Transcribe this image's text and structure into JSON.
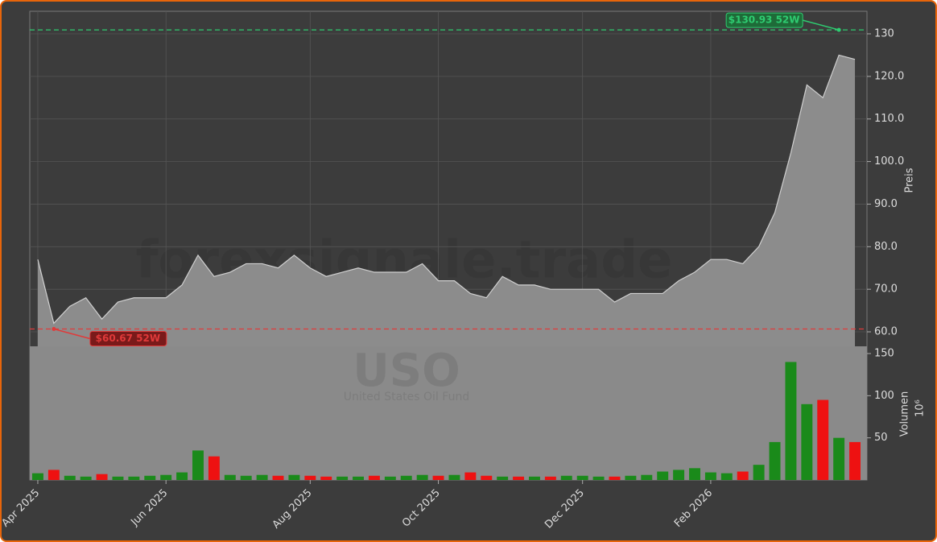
{
  "chart_data": {
    "type": "area",
    "watermark": "forexsignale.trade",
    "title": "USO",
    "subtitle": "United States Oil Fund",
    "ylabel": "Preis",
    "color": "#8c8c8c",
    "line_color": "#d0d0d0",
    "grid": true,
    "categories": [
      "Apr 2025",
      null,
      null,
      null,
      null,
      null,
      null,
      null,
      "Jun 2025",
      null,
      null,
      null,
      null,
      null,
      null,
      null,
      null,
      "Aug 2025",
      null,
      null,
      null,
      null,
      null,
      null,
      null,
      "Oct 2025",
      null,
      null,
      null,
      null,
      null,
      null,
      null,
      null,
      "Dec 2025",
      null,
      null,
      null,
      null,
      null,
      null,
      null,
      "Feb 2026",
      null,
      null,
      null,
      null,
      null,
      null,
      null,
      null,
      null
    ],
    "values": [
      77,
      62,
      66,
      68,
      63,
      67,
      68,
      68,
      68,
      71,
      78,
      73,
      74,
      76,
      76,
      75,
      78,
      75,
      73,
      74,
      75,
      74,
      74,
      74,
      76,
      72,
      72,
      69,
      68,
      73,
      71,
      71,
      70,
      70,
      70,
      70,
      67,
      69,
      69,
      69,
      72,
      74,
      77,
      77,
      76,
      80,
      88,
      102,
      118,
      115,
      125,
      124
    ],
    "ylim": [
      56.6,
      135.3
    ],
    "yticks": [
      {
        "value": 60,
        "label": "60.0"
      },
      {
        "value": 70,
        "label": "70.0"
      },
      {
        "value": 80,
        "label": "80.0"
      },
      {
        "value": 90,
        "label": "90.0"
      },
      {
        "value": 100,
        "label": "100.0"
      },
      {
        "value": 110,
        "label": "110.0"
      },
      {
        "value": 120,
        "label": "120.0"
      },
      130
    ],
    "lines": [
      {
        "value": 130.93,
        "label": "$130.93 52W",
        "color": "#2ecc71",
        "box": "#1e6b38"
      },
      {
        "value": 60.67,
        "label": "$60.67 52W",
        "color": "#e03a3a",
        "box": "#7a1a1a"
      }
    ],
    "volume": {
      "type": "bar",
      "ylabel": "Volumen",
      "unit": "10⁶",
      "values": [
        8,
        12,
        5,
        4,
        7,
        4,
        4,
        5,
        6,
        9,
        35,
        28,
        6,
        5,
        6,
        5,
        6,
        5,
        4,
        4,
        4,
        5,
        4,
        5,
        6,
        5,
        6,
        9,
        5,
        4,
        4,
        4,
        4,
        5,
        5,
        4,
        4,
        5,
        6,
        10,
        12,
        14,
        9,
        8,
        10,
        18,
        45,
        140,
        90,
        95,
        50,
        45
      ],
      "ylim": [
        0,
        158.6
      ],
      "yticks": [
        50,
        100,
        150
      ],
      "up_color": "#1a8a1a",
      "down_color": "#ee1111",
      "background": "#8a8a8a"
    }
  }
}
